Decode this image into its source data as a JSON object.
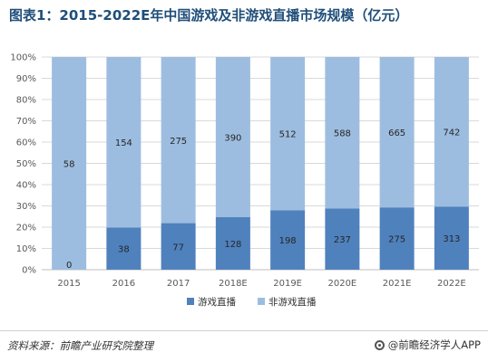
{
  "title": "图表1：2015-2022E年中国游戏及非游戏直播市场规模（亿元）",
  "source": "资料来源：前瞻产业研究院整理",
  "brand": "@前瞻经济学人APP",
  "colors": {
    "game": "#4f81bd",
    "nongame": "#9dbde0",
    "axis": "#bfbfbf",
    "grid": "#d9d9d9"
  },
  "chart_data": {
    "type": "bar",
    "stacked": "percent",
    "categories": [
      "2015",
      "2016",
      "2017",
      "2018E",
      "2019E",
      "2020E",
      "2021E",
      "2022E"
    ],
    "series": [
      {
        "name": "游戏直播",
        "values": [
          0,
          38,
          77,
          128,
          198,
          237,
          275,
          313
        ]
      },
      {
        "name": "非游戏直播",
        "values": [
          58,
          154,
          275,
          390,
          512,
          588,
          665,
          742
        ]
      }
    ],
    "yticks": [
      "0%",
      "10%",
      "20%",
      "30%",
      "40%",
      "50%",
      "60%",
      "70%",
      "80%",
      "90%",
      "100%"
    ],
    "ylim": [
      0,
      100
    ],
    "legend_position": "bottom"
  }
}
